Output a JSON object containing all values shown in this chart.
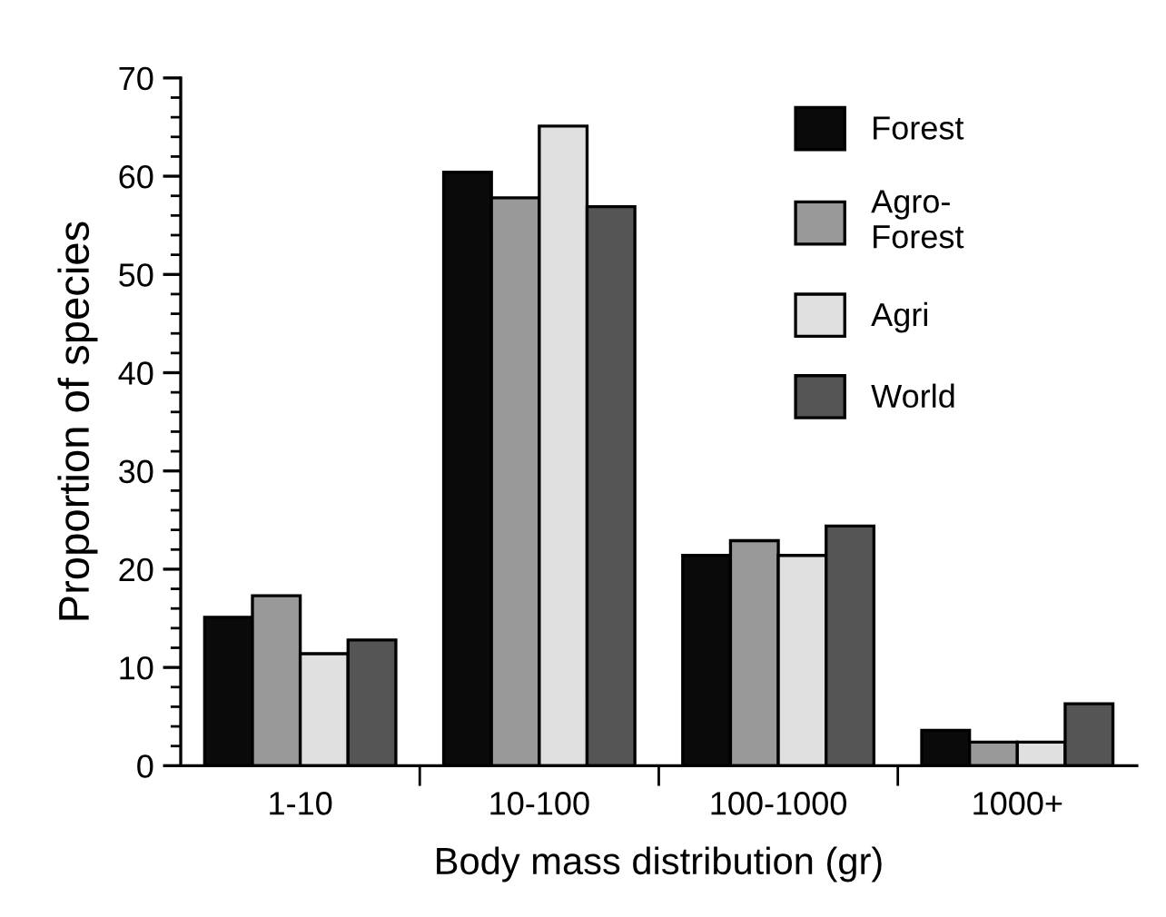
{
  "chart_data": {
    "type": "bar",
    "xlabel": "Body mass distribution (gr)",
    "ylabel": "Proportion of species",
    "categories": [
      "1-10",
      "10-100",
      "100-1000",
      "1000+"
    ],
    "series": [
      {
        "name": "Forest",
        "color": "#0a0a0a",
        "values": [
          15.1,
          60.4,
          21.4,
          3.6
        ]
      },
      {
        "name": "Agro-\nForest",
        "color": "#999999",
        "values": [
          17.3,
          57.8,
          22.9,
          2.4
        ]
      },
      {
        "name": "Agri",
        "color": "#e0e0e0",
        "values": [
          11.4,
          65.1,
          21.4,
          2.4
        ]
      },
      {
        "name": "World",
        "color": "#555555",
        "values": [
          12.8,
          56.9,
          24.4,
          6.3
        ]
      }
    ],
    "ylim": [
      0,
      70
    ],
    "yticks": [
      0,
      10,
      20,
      30,
      40,
      50,
      60,
      70
    ],
    "grid": false,
    "legend": "top right"
  }
}
